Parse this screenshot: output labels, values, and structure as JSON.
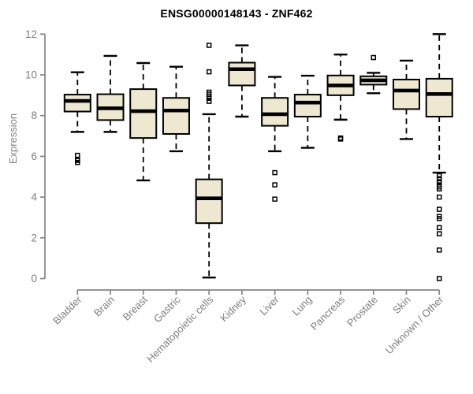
{
  "title": "ENSG00000148143 - ZNF462",
  "colors": {
    "box_fill": "#EDE8CF",
    "box_stroke": "#000000",
    "median": "#000000",
    "whisker": "#000000",
    "outlier": "#000000",
    "axis": "#858585",
    "tick_label": "#7f7f7f",
    "title": "#000000",
    "background": "#ffffff"
  },
  "chart_data": {
    "type": "boxplot",
    "title": "ENSG00000148143 - ZNF462",
    "xlabel": "",
    "ylabel": "Expression",
    "ylim": [
      0,
      12
    ],
    "yticks": [
      0,
      2,
      4,
      6,
      8,
      10,
      12
    ],
    "grid": false,
    "legend": "none",
    "categories": [
      "Bladder",
      "Brain",
      "Breast",
      "Gastric",
      "Hematopoietic cells",
      "Kidney",
      "Liver",
      "Lung",
      "Pancreas",
      "Prostate",
      "Skin",
      "Unknown / Other"
    ],
    "series": [
      {
        "category": "Bladder",
        "whisker_low": 7.2,
        "q1": 8.2,
        "median": 8.72,
        "q3": 9.03,
        "whisker_high": 10.13,
        "outliers": [
          6.05,
          5.85,
          5.8,
          5.7
        ]
      },
      {
        "category": "Brain",
        "whisker_low": 7.2,
        "q1": 7.78,
        "median": 8.36,
        "q3": 9.05,
        "whisker_high": 10.93,
        "outliers": []
      },
      {
        "category": "Breast",
        "whisker_low": 4.82,
        "q1": 6.9,
        "median": 8.22,
        "q3": 9.3,
        "whisker_high": 10.58,
        "outliers": []
      },
      {
        "category": "Gastric",
        "whisker_low": 6.25,
        "q1": 7.1,
        "median": 8.25,
        "q3": 8.87,
        "whisker_high": 10.4,
        "outliers": []
      },
      {
        "category": "Hematopoietic cells",
        "whisker_low": 0.05,
        "q1": 2.72,
        "median": 3.94,
        "q3": 4.87,
        "whisker_high": 8.07,
        "outliers": [
          11.45,
          10.15,
          9.15,
          9.05,
          8.95,
          8.85,
          8.7
        ]
      },
      {
        "category": "Kidney",
        "whisker_low": 7.95,
        "q1": 9.48,
        "median": 10.28,
        "q3": 10.6,
        "whisker_high": 11.45,
        "outliers": []
      },
      {
        "category": "Liver",
        "whisker_low": 6.25,
        "q1": 7.5,
        "median": 8.07,
        "q3": 8.87,
        "whisker_high": 9.9,
        "outliers": [
          5.2,
          4.6,
          3.9
        ]
      },
      {
        "category": "Lung",
        "whisker_low": 6.42,
        "q1": 7.95,
        "median": 8.64,
        "q3": 9.03,
        "whisker_high": 9.96,
        "outliers": []
      },
      {
        "category": "Pancreas",
        "whisker_low": 7.8,
        "q1": 9.0,
        "median": 9.48,
        "q3": 9.97,
        "whisker_high": 11.0,
        "outliers": [
          6.9,
          6.85
        ]
      },
      {
        "category": "Prostate",
        "whisker_low": 9.1,
        "q1": 9.52,
        "median": 9.73,
        "q3": 9.93,
        "whisker_high": 10.1,
        "outliers": [
          10.85
        ]
      },
      {
        "category": "Skin",
        "whisker_low": 6.85,
        "q1": 8.32,
        "median": 9.23,
        "q3": 9.77,
        "whisker_high": 10.7,
        "outliers": []
      },
      {
        "category": "Unknown / Other",
        "whisker_low": 5.2,
        "q1": 7.95,
        "median": 9.06,
        "q3": 9.81,
        "whisker_high": 12.0,
        "outliers": [
          5.05,
          4.9,
          4.75,
          4.6,
          4.5,
          4.4,
          4.0,
          3.4,
          3.05,
          2.95,
          2.5,
          2.2,
          1.4,
          0.0
        ]
      }
    ]
  }
}
